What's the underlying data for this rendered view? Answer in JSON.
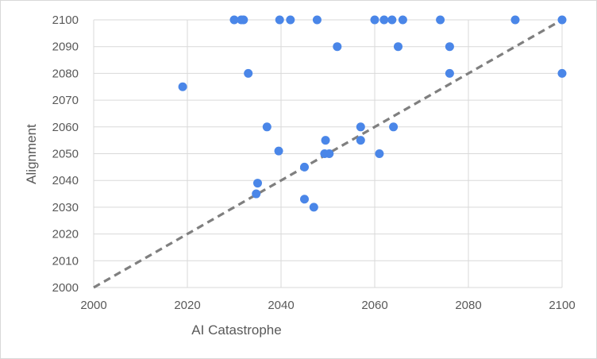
{
  "chart_data": {
    "type": "scatter",
    "xlabel": "AI Catastrophe",
    "ylabel": "Alignment",
    "xlim": [
      2000,
      2100
    ],
    "ylim": [
      2000,
      2100
    ],
    "x_ticks": [
      "2000",
      "2020",
      "2040",
      "2060",
      "2080",
      "2100"
    ],
    "y_ticks": [
      "2000",
      "2010",
      "2020",
      "2030",
      "2040",
      "2050",
      "2060",
      "2070",
      "2080",
      "2090",
      "2100"
    ],
    "grid": true,
    "legend": "none",
    "reference_line": {
      "style": "dashed",
      "from": [
        2000,
        2000
      ],
      "to": [
        2100,
        2100
      ],
      "color": "#7f7f7f"
    },
    "point_color": "#4a86e8",
    "points": [
      {
        "x": 2019,
        "y": 2075
      },
      {
        "x": 2030,
        "y": 2100
      },
      {
        "x": 2031.5,
        "y": 2100
      },
      {
        "x": 2032,
        "y": 2100
      },
      {
        "x": 2033,
        "y": 2080
      },
      {
        "x": 2034.7,
        "y": 2035
      },
      {
        "x": 2035,
        "y": 2039
      },
      {
        "x": 2037,
        "y": 2060
      },
      {
        "x": 2039.5,
        "y": 2051
      },
      {
        "x": 2039.7,
        "y": 2100
      },
      {
        "x": 2042,
        "y": 2100
      },
      {
        "x": 2045,
        "y": 2045
      },
      {
        "x": 2045,
        "y": 2033
      },
      {
        "x": 2047,
        "y": 2030
      },
      {
        "x": 2047.7,
        "y": 2100
      },
      {
        "x": 2049.3,
        "y": 2050
      },
      {
        "x": 2049.5,
        "y": 2055
      },
      {
        "x": 2050.3,
        "y": 2050
      },
      {
        "x": 2052,
        "y": 2090
      },
      {
        "x": 2057,
        "y": 2060
      },
      {
        "x": 2057,
        "y": 2055
      },
      {
        "x": 2060,
        "y": 2100
      },
      {
        "x": 2061,
        "y": 2050
      },
      {
        "x": 2062,
        "y": 2100
      },
      {
        "x": 2063.7,
        "y": 2100
      },
      {
        "x": 2064,
        "y": 2060
      },
      {
        "x": 2065,
        "y": 2090
      },
      {
        "x": 2066,
        "y": 2100
      },
      {
        "x": 2074,
        "y": 2100
      },
      {
        "x": 2076,
        "y": 2090
      },
      {
        "x": 2076,
        "y": 2080
      },
      {
        "x": 2090,
        "y": 2100
      },
      {
        "x": 2100,
        "y": 2100
      },
      {
        "x": 2100,
        "y": 2080
      }
    ]
  }
}
